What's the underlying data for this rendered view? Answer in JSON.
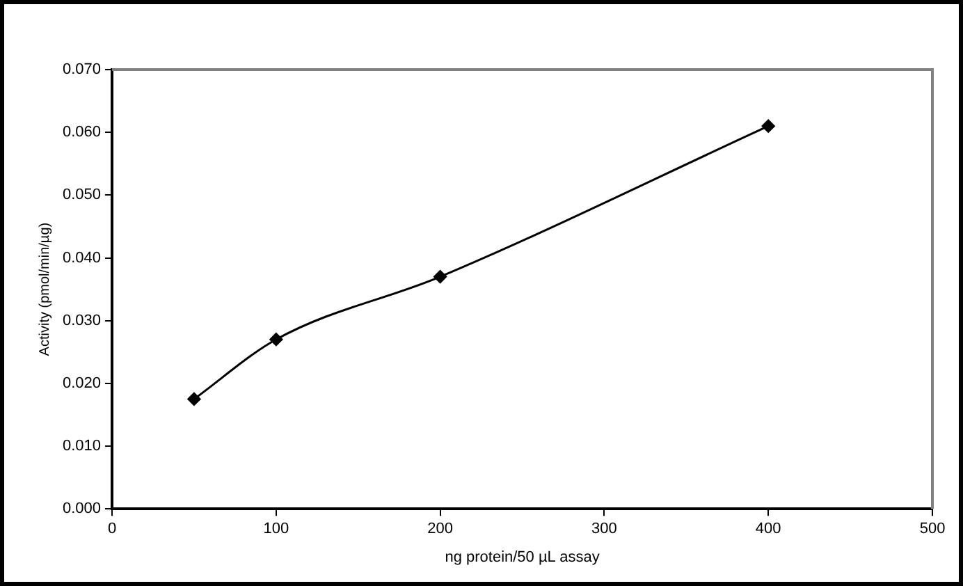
{
  "chart_data": {
    "type": "line",
    "xlabel": "ng protein/50 µL assay",
    "ylabel": "Activity (pmol/min/µg)",
    "x": [
      50,
      100,
      200,
      400
    ],
    "series": [
      {
        "color": "#000000",
        "values": [
          0.0175,
          0.027,
          0.037,
          0.061
        ]
      }
    ],
    "xlim": [
      0,
      500
    ],
    "xticks": [
      0,
      100,
      200,
      300,
      400,
      500
    ],
    "ylim": [
      0,
      0.07
    ],
    "yticks": [
      {
        "value": 0,
        "label": "0.000"
      },
      {
        "value": 0.01,
        "label": "0.010"
      },
      {
        "value": 0.02,
        "label": "0.020"
      },
      {
        "value": 0.03,
        "label": "0.030"
      },
      {
        "value": 0.04,
        "label": "0.040"
      },
      {
        "value": 0.05,
        "label": "0.050"
      },
      {
        "value": 0.06,
        "label": "0.060"
      },
      {
        "value": 0.07,
        "label": "0.070"
      }
    ],
    "grid": false,
    "legend": false,
    "marker": "diamond",
    "line_style": "solid"
  }
}
